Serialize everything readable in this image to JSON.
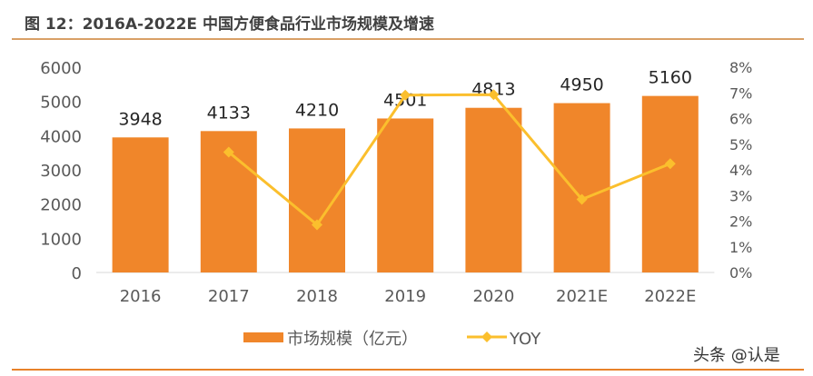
{
  "title": "图 12：2016A-2022E 中国方便食品行业市场规模及增速",
  "watermark": "头条 @认是",
  "colors": {
    "bar": "#f0862a",
    "line": "#fbbf2d",
    "title_rule": "#d9a066",
    "bottom_rule": "#e8822a"
  },
  "chart_data": {
    "type": "bar+line",
    "categories": [
      "2016",
      "2017",
      "2018",
      "2019",
      "2020",
      "2021E",
      "2022E"
    ],
    "series": [
      {
        "name": "市场规模（亿元）",
        "type": "bar",
        "axis": "left",
        "values": [
          3948,
          4133,
          4210,
          4501,
          4813,
          4950,
          5160
        ]
      },
      {
        "name": "YOY",
        "type": "line",
        "axis": "right",
        "values": [
          null,
          4.69,
          1.86,
          6.91,
          6.93,
          2.85,
          4.24
        ]
      }
    ],
    "left_axis": {
      "min": 0,
      "max": 6000,
      "ticks": [
        "0",
        "1000",
        "2000",
        "3000",
        "4000",
        "5000",
        "6000"
      ]
    },
    "right_axis": {
      "min": 0,
      "max": 8,
      "ticks": [
        "0%",
        "1%",
        "2%",
        "3%",
        "4%",
        "5%",
        "6%",
        "7%",
        "8%"
      ]
    },
    "legend": {
      "position": "bottom",
      "items": [
        "市场规模（亿元）",
        "YOY"
      ]
    },
    "grid": false
  }
}
